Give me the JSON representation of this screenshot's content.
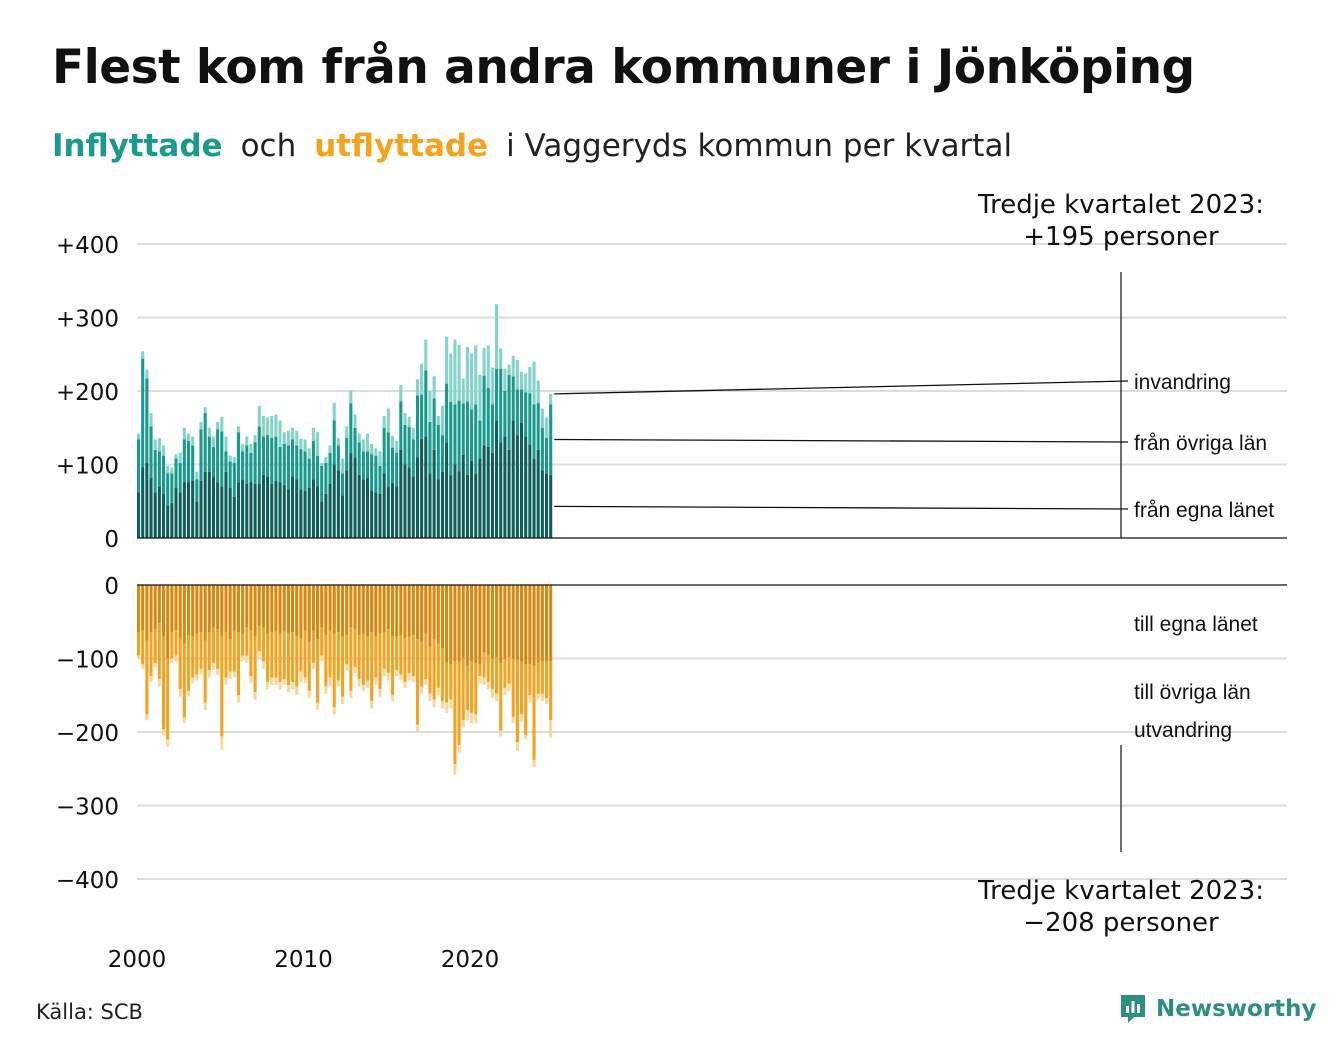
{
  "title": "Flest kom från andra kommuner i Jönköping",
  "subtitle": {
    "in_word": "Inflyttade",
    "mid": "och",
    "out_word": "utflyttade",
    "rest": "i Vaggeryds  kommun  per  kvartal"
  },
  "annotations": {
    "top_line1": "Tredje kvartalet 2023:",
    "top_line2": "+195 personer",
    "bottom_line1": "Tredje kvartalet 2023:",
    "bottom_line2": "−208 personer"
  },
  "source": "Källa: SCB",
  "brand": "Newsworthy",
  "colors": {
    "in_egna": "#0e5f58",
    "in_ovriga": "#1a9a8c",
    "in_invandring": "#86d3c9",
    "out_egna": "#d9880d",
    "out_ovriga": "#f5a21f",
    "out_utvandring": "#f8d99c",
    "brand": "#2c8f80"
  },
  "chart_data": [
    {
      "type": "bar",
      "stacked": true,
      "panel": "inflyttade",
      "x_start": "2000 Q1",
      "ylim": [
        0,
        400
      ],
      "y_ticks": [
        "0",
        "+100",
        "+200",
        "+300",
        "+400"
      ],
      "x_ticks": [
        "2000",
        "2010",
        "2020"
      ],
      "grid": true,
      "series": [
        {
          "name": "från egna länet",
          "values": [
            62,
            96,
            102,
            82,
            62,
            70,
            60,
            44,
            48,
            68,
            62,
            76,
            76,
            78,
            50,
            78,
            90,
            90,
            84,
            76,
            70,
            90,
            68,
            56,
            76,
            80,
            74,
            76,
            74,
            74,
            86,
            84,
            74,
            78,
            76,
            72,
            66,
            84,
            80,
            66,
            64,
            68,
            80,
            70,
            50,
            60,
            74,
            100,
            92,
            58,
            92,
            115,
            110,
            86,
            80,
            82,
            64,
            62,
            60,
            88,
            70,
            75,
            70,
            120,
            100,
            96,
            84,
            110,
            135,
            138,
            88,
            120,
            80,
            90,
            130,
            85,
            100,
            91,
            113,
            86,
            105,
            88,
            108,
            126,
            124,
            116,
            160,
            130,
            138,
            120,
            160,
            140,
            157,
            138,
            127,
            108,
            120,
            92,
            88,
            86
          ]
        },
        {
          "name": "från övriga län",
          "values": [
            72,
            148,
            115,
            70,
            58,
            48,
            52,
            44,
            40,
            40,
            40,
            58,
            56,
            48,
            30,
            70,
            80,
            48,
            40,
            72,
            75,
            28,
            36,
            46,
            68,
            38,
            52,
            40,
            56,
            78,
            52,
            56,
            62,
            60,
            48,
            56,
            60,
            50,
            46,
            55,
            54,
            40,
            52,
            42,
            48,
            42,
            42,
            60,
            34,
            30,
            44,
            68,
            40,
            44,
            38,
            36,
            50,
            50,
            38,
            62,
            74,
            48,
            46,
            66,
            54,
            55,
            50,
            84,
            60,
            90,
            70,
            70,
            74,
            50,
            80,
            100,
            82,
            96,
            70,
            100,
            70,
            94,
            52,
            95,
            80,
            66,
            70,
            100,
            62,
            102,
            60,
            62,
            45,
            60,
            70,
            74,
            64,
            58,
            48,
            96
          ]
        },
        {
          "name": "invandring",
          "values": [
            8,
            10,
            12,
            18,
            14,
            18,
            14,
            10,
            8,
            6,
            14,
            16,
            10,
            12,
            10,
            10,
            8,
            12,
            14,
            10,
            20,
            20,
            8,
            8,
            8,
            10,
            12,
            12,
            10,
            28,
            28,
            24,
            30,
            30,
            36,
            16,
            20,
            16,
            20,
            14,
            16,
            14,
            18,
            32,
            4,
            8,
            10,
            24,
            10,
            20,
            16,
            18,
            18,
            12,
            16,
            24,
            14,
            10,
            20,
            16,
            32,
            16,
            16,
            22,
            16,
            14,
            16,
            22,
            42,
            42,
            42,
            30,
            12,
            40,
            64,
            66,
            88,
            76,
            34,
            74,
            76,
            80,
            62,
            38,
            58,
            50,
            88,
            28,
            30,
            14,
            28,
            40,
            24,
            26,
            36,
            58,
            30,
            26,
            28,
            14
          ]
        }
      ]
    },
    {
      "type": "bar",
      "stacked": true,
      "panel": "utflyttade",
      "x_start": "2000 Q1",
      "ylim": [
        -400,
        0
      ],
      "y_ticks": [
        "0",
        "−100",
        "−200",
        "−300",
        "−400"
      ],
      "x_ticks": [
        "2000",
        "2010",
        "2020"
      ],
      "grid": true,
      "series": [
        {
          "name": "till egna länet",
          "values": [
            -64,
            -62,
            -76,
            -64,
            -60,
            -52,
            -70,
            -100,
            -64,
            -62,
            -72,
            -80,
            -68,
            -70,
            -66,
            -64,
            -76,
            -64,
            -58,
            -60,
            -70,
            -64,
            -74,
            -62,
            -64,
            -66,
            -58,
            -62,
            -70,
            -56,
            -58,
            -66,
            -64,
            -62,
            -66,
            -62,
            -66,
            -64,
            -70,
            -72,
            -62,
            -78,
            -62,
            -74,
            -58,
            -68,
            -62,
            -66,
            -64,
            -70,
            -68,
            -58,
            -60,
            -68,
            -66,
            -70,
            -64,
            -70,
            -66,
            -64,
            -60,
            -70,
            -70,
            -68,
            -72,
            -70,
            -68,
            -74,
            -78,
            -66,
            -84,
            -74,
            -80,
            -86,
            -106,
            -108,
            -104,
            -104,
            -100,
            -110,
            -104,
            -106,
            -108,
            -92,
            -96,
            -100,
            -98,
            -106,
            -100,
            -98,
            -100,
            -102,
            -104,
            -108,
            -108,
            -110,
            -106,
            -104,
            -104,
            -104
          ]
        },
        {
          "name": "till övriga län",
          "values": [
            -32,
            -46,
            -100,
            -60,
            -46,
            -76,
            -126,
            -110,
            -36,
            -34,
            -70,
            -100,
            -76,
            -56,
            -56,
            -50,
            -84,
            -52,
            -48,
            -54,
            -136,
            -62,
            -44,
            -56,
            -86,
            -30,
            -38,
            -62,
            -76,
            -34,
            -46,
            -66,
            -62,
            -64,
            -66,
            -66,
            -70,
            -68,
            -68,
            -46,
            -64,
            -66,
            -44,
            -86,
            -38,
            -70,
            -64,
            -100,
            -66,
            -82,
            -40,
            -86,
            -52,
            -60,
            -70,
            -60,
            -94,
            -56,
            -76,
            -50,
            -60,
            -80,
            -46,
            -54,
            -60,
            -50,
            -56,
            -116,
            -60,
            -62,
            -64,
            -82,
            -60,
            -72,
            -54,
            -48,
            -140,
            -114,
            -84,
            -60,
            -70,
            -70,
            -16,
            -34,
            -36,
            -42,
            -50,
            -92,
            -40,
            -36,
            -80,
            -112,
            -72,
            -96,
            -42,
            -128,
            -42,
            -44,
            -50,
            -80
          ]
        },
        {
          "name": "utvandring",
          "values": [
            -4,
            -6,
            -8,
            -8,
            -6,
            -10,
            -8,
            -10,
            -6,
            -8,
            -10,
            -8,
            -8,
            -8,
            -8,
            -8,
            -10,
            -10,
            -10,
            -8,
            -18,
            -10,
            -10,
            -8,
            -10,
            -8,
            -10,
            -10,
            -10,
            -10,
            -10,
            -10,
            -10,
            -10,
            -10,
            -8,
            -10,
            -10,
            -12,
            -14,
            -8,
            -10,
            -8,
            -10,
            -8,
            -10,
            -12,
            -10,
            -8,
            -10,
            -8,
            -10,
            -8,
            -10,
            -8,
            -10,
            -10,
            -10,
            -10,
            -10,
            -10,
            -8,
            -8,
            -8,
            -8,
            -10,
            -8,
            -10,
            -10,
            -8,
            -10,
            -10,
            -10,
            -10,
            -14,
            -12,
            -14,
            -10,
            -10,
            -14,
            -14,
            -12,
            -10,
            -10,
            -10,
            -12,
            -10,
            -8,
            -10,
            -10,
            -8,
            -12,
            -10,
            -6,
            -10,
            -10,
            -8,
            -10,
            -8,
            -24
          ]
        }
      ]
    }
  ]
}
